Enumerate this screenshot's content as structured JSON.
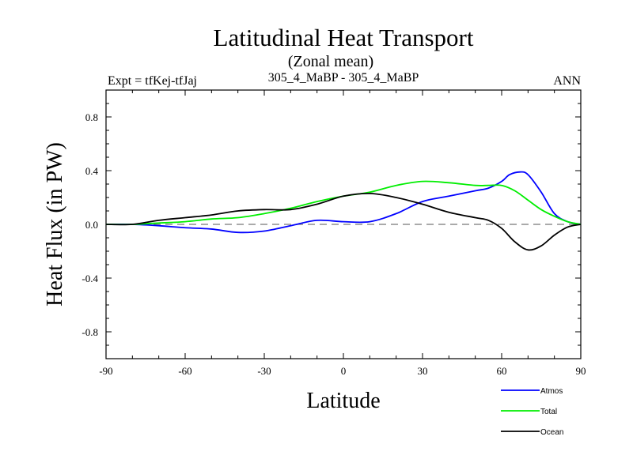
{
  "chart_data": {
    "type": "line",
    "title": "Latitudinal Heat Transport",
    "subtitle": "(Zonal mean)",
    "left_label": "Expt = tfKej-tfJaj",
    "center_label": "305_4_MaBP - 305_4_MaBP",
    "right_label": "ANN",
    "xlabel": "Latitude",
    "ylabel": "Heat Flux (in PW)",
    "xlim": [
      -90,
      90
    ],
    "ylim": [
      -1.0,
      1.0
    ],
    "x_ticks": [
      -90,
      -60,
      -30,
      0,
      30,
      60,
      90
    ],
    "x_tick_labels": [
      "-90",
      "-60",
      "-30",
      "0",
      "30",
      "60",
      "90"
    ],
    "y_ticks": [
      -0.8,
      -0.4,
      0.0,
      0.4,
      0.8
    ],
    "y_tick_labels": [
      "-0.8",
      "-0.4",
      "0.0",
      "0.4",
      "0.8"
    ],
    "reference_line": 0.0,
    "legend_position": "bottom-right",
    "series": [
      {
        "name": "Atmos",
        "color": "#0000ff",
        "x": [
          -90,
          -80,
          -70,
          -60,
          -50,
          -40,
          -30,
          -20,
          -10,
          0,
          10,
          20,
          30,
          40,
          50,
          55,
          60,
          63,
          67,
          70,
          75,
          80,
          85,
          90
        ],
        "y": [
          0.0,
          0.0,
          -0.01,
          -0.025,
          -0.035,
          -0.06,
          -0.05,
          -0.01,
          0.03,
          0.02,
          0.02,
          0.08,
          0.17,
          0.21,
          0.25,
          0.27,
          0.32,
          0.37,
          0.39,
          0.37,
          0.24,
          0.08,
          0.02,
          0.0
        ]
      },
      {
        "name": "Total",
        "color": "#00ee00",
        "x": [
          -90,
          -80,
          -70,
          -60,
          -50,
          -40,
          -30,
          -20,
          -10,
          0,
          10,
          20,
          30,
          40,
          50,
          55,
          60,
          65,
          70,
          75,
          80,
          85,
          90
        ],
        "y": [
          0.0,
          0.0,
          0.01,
          0.02,
          0.04,
          0.05,
          0.08,
          0.12,
          0.17,
          0.21,
          0.24,
          0.29,
          0.32,
          0.31,
          0.29,
          0.29,
          0.29,
          0.25,
          0.18,
          0.11,
          0.06,
          0.02,
          0.0
        ]
      },
      {
        "name": "Ocean",
        "color": "#000000",
        "x": [
          -90,
          -80,
          -70,
          -60,
          -50,
          -40,
          -30,
          -20,
          -10,
          0,
          10,
          20,
          30,
          40,
          50,
          55,
          60,
          65,
          70,
          75,
          80,
          85,
          90
        ],
        "y": [
          0.0,
          0.0,
          0.03,
          0.05,
          0.07,
          0.1,
          0.11,
          0.11,
          0.15,
          0.21,
          0.23,
          0.2,
          0.15,
          0.09,
          0.05,
          0.03,
          -0.03,
          -0.13,
          -0.19,
          -0.16,
          -0.08,
          -0.02,
          0.0
        ]
      }
    ]
  }
}
